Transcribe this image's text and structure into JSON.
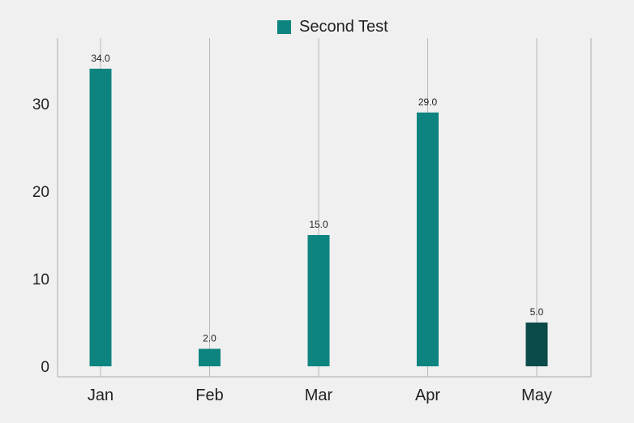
{
  "colors": {
    "series": "#0e8480",
    "highlight": "#0b4a49",
    "grid": "#b9b9b9",
    "axis": "#b9b9b9",
    "background": "#f0f0f0"
  },
  "chart_data": {
    "type": "bar",
    "categories": [
      "Jan",
      "Feb",
      "Mar",
      "Apr",
      "May"
    ],
    "series": [
      {
        "name": "Second Test",
        "values": [
          34.0,
          2.0,
          15.0,
          29.0,
          5.0
        ]
      }
    ],
    "data_labels": [
      "34.0",
      "2.0",
      "15.0",
      "29.0",
      "5.0"
    ],
    "highlighted_category": "May",
    "yticks": [
      0,
      10,
      20,
      30
    ],
    "ylim": [
      -1.2,
      37.5
    ],
    "grid": {
      "vertical": true,
      "horizontal": false
    },
    "legend": "top-center"
  }
}
